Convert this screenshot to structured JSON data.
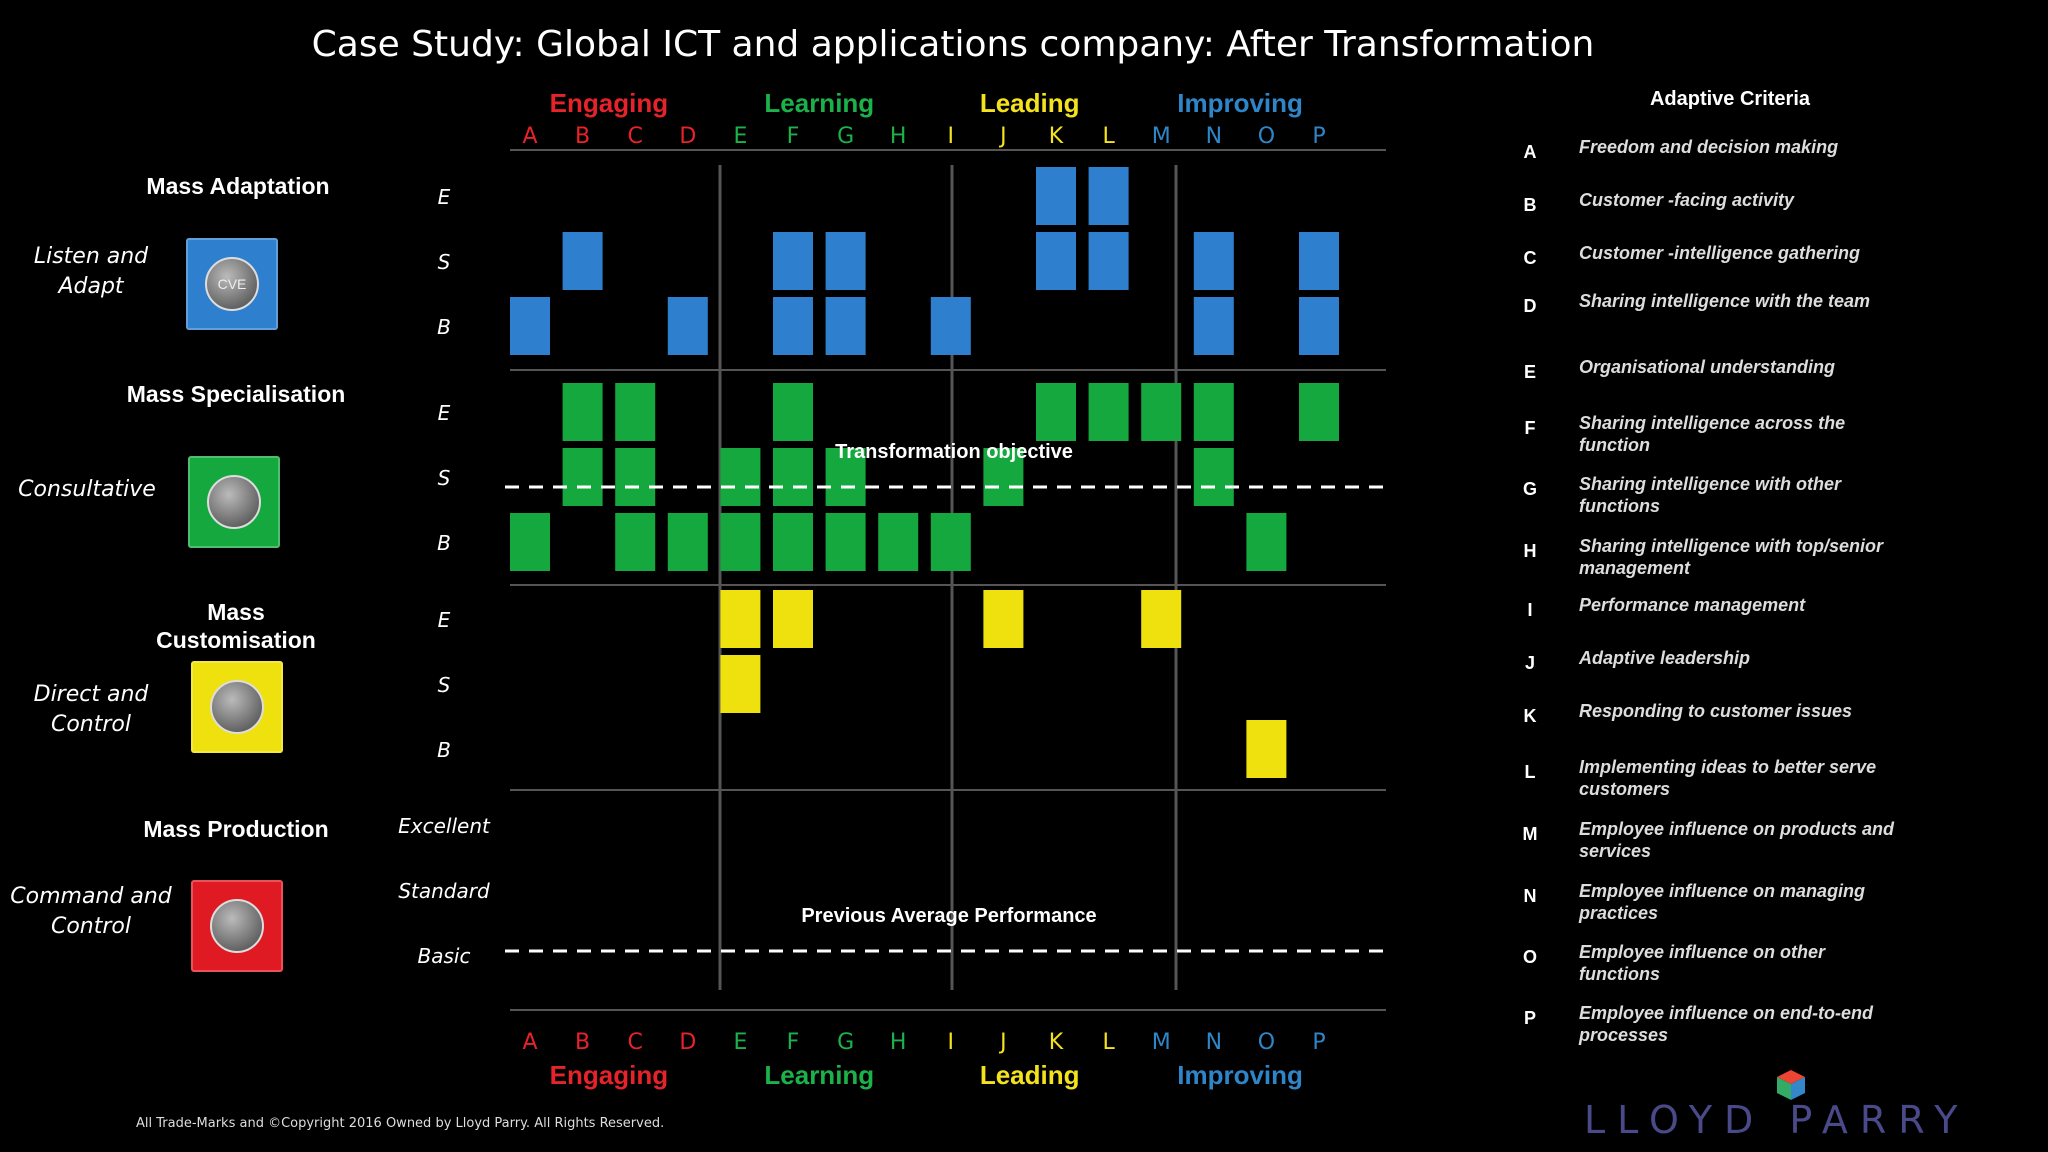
{
  "title": "Case Study: Global ICT and applications company: After Transformation",
  "categories": [
    {
      "name": "Engaging",
      "color": "#e8222a",
      "letters": [
        "A",
        "B",
        "C",
        "D"
      ]
    },
    {
      "name": "Learning",
      "color": "#1cb24a",
      "letters": [
        "E",
        "F",
        "G",
        "H"
      ]
    },
    {
      "name": "Leading",
      "color": "#f3e21c",
      "letters": [
        "I",
        "J",
        "K",
        "L"
      ]
    },
    {
      "name": "Improving",
      "color": "#2e86c9",
      "letters": [
        "M",
        "N",
        "O",
        "P"
      ]
    }
  ],
  "levels": [
    {
      "name": "Mass Adaptation",
      "style": "Listen and Adapt",
      "color": "#2f7fcf",
      "icon": "cve-icon",
      "icon_text": "CVE",
      "rows": [
        "E",
        "S",
        "B"
      ]
    },
    {
      "name": "Mass Specialisation",
      "style": "Consultative",
      "color": "#14a83e",
      "icon": "workshop-icon",
      "icon_text": "",
      "rows": [
        "E",
        "S",
        "B"
      ]
    },
    {
      "name": "Mass Customisation",
      "style": "Direct and Control",
      "color": "#eee10e",
      "icon": "pizza-icon",
      "icon_text": "",
      "rows": [
        "E",
        "S",
        "B"
      ]
    },
    {
      "name": "Mass Production",
      "style": "Command and Control",
      "color": "#e01a22",
      "icon": "bus-icon",
      "icon_text": "",
      "rows": [
        "Excellent",
        "Standard",
        "Basic"
      ]
    }
  ],
  "chart_data": {
    "type": "heatmap",
    "title": "Case Study: Global ICT and applications company: After Transformation",
    "columns": [
      "A",
      "B",
      "C",
      "D",
      "E",
      "F",
      "G",
      "H",
      "I",
      "J",
      "K",
      "L",
      "M",
      "N",
      "O",
      "P"
    ],
    "rows": [
      "Mass Adaptation E",
      "Mass Adaptation S",
      "Mass Adaptation B",
      "Mass Specialisation E",
      "Mass Specialisation S",
      "Mass Specialisation B",
      "Mass Customisation E",
      "Mass Customisation S",
      "Mass Customisation B",
      "Mass Production Excellent",
      "Mass Production Standard",
      "Mass Production Basic"
    ],
    "filled_cells": {
      "Mass Adaptation E": [
        "K",
        "L"
      ],
      "Mass Adaptation S": [
        "B",
        "F",
        "G",
        "K",
        "L",
        "N",
        "P"
      ],
      "Mass Adaptation B": [
        "A",
        "D",
        "F",
        "G",
        "I",
        "N",
        "P"
      ],
      "Mass Specialisation E": [
        "B",
        "C",
        "F",
        "K",
        "L",
        "M",
        "N",
        "P"
      ],
      "Mass Specialisation S": [
        "B",
        "C",
        "E",
        "F",
        "G",
        "J",
        "N"
      ],
      "Mass Specialisation B": [
        "A",
        "C",
        "D",
        "E",
        "F",
        "G",
        "H",
        "I",
        "O"
      ],
      "Mass Customisation E": [
        "E",
        "F",
        "J",
        "M"
      ],
      "Mass Customisation S": [
        "E"
      ],
      "Mass Customisation B": [
        "O"
      ],
      "Mass Production Excellent": [],
      "Mass Production Standard": [],
      "Mass Production Basic": []
    },
    "reference_lines": [
      {
        "label": "Transformation objective",
        "row": "Mass Specialisation S"
      },
      {
        "label": "Previous Average Performance",
        "row": "Mass Production Basic"
      }
    ]
  },
  "criteria_title": "Adaptive Criteria",
  "criteria": [
    {
      "letter": "A",
      "text": "Freedom and decision making"
    },
    {
      "letter": "B",
      "text": "Customer -facing activity"
    },
    {
      "letter": "C",
      "text": "Customer -intelligence gathering"
    },
    {
      "letter": "D",
      "text": "Sharing intelligence with the team"
    },
    {
      "letter": "E",
      "text": "Organisational understanding"
    },
    {
      "letter": "F",
      "text": "Sharing intelligence across the function"
    },
    {
      "letter": "G",
      "text": "Sharing intelligence with other functions"
    },
    {
      "letter": "H",
      "text": "Sharing intelligence with top/senior management"
    },
    {
      "letter": "I",
      "text": "Performance management"
    },
    {
      "letter": "J",
      "text": "Adaptive leadership"
    },
    {
      "letter": "K",
      "text": "Responding to customer issues"
    },
    {
      "letter": "L",
      "text": "Implementing ideas to better serve customers"
    },
    {
      "letter": "M",
      "text": "Employee influence on products and services"
    },
    {
      "letter": "N",
      "text": "Employee influence on managing practices"
    },
    {
      "letter": "O",
      "text": "Employee influence on other functions"
    },
    {
      "letter": "P",
      "text": "Employee influence on end-to-end processes"
    }
  ],
  "copyright": "All Trade-Marks and ©Copyright 2016 Owned by Lloyd Parry. All Rights Reserved.",
  "logo": "LLOYD PARRY"
}
